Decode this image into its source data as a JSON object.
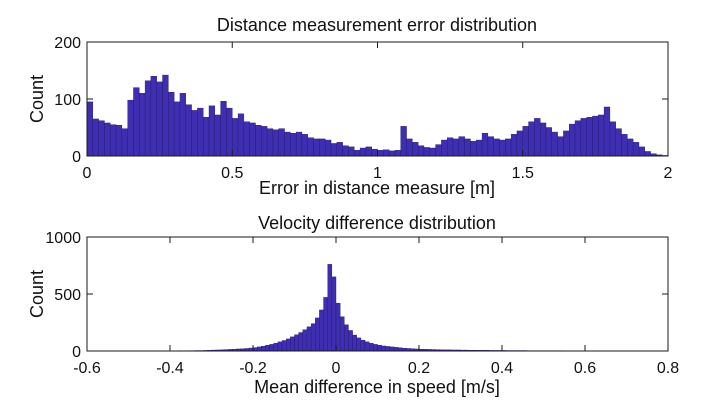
{
  "chart_data": [
    {
      "type": "bar",
      "title": "Distance measurement error distribution",
      "xlabel": "Error in distance measure [m]",
      "ylabel": "Count",
      "xlim": [
        0,
        2
      ],
      "ylim": [
        0,
        200
      ],
      "xticks": [
        "0",
        "0.5",
        "1",
        "1.5",
        "2"
      ],
      "yticks": [
        "0",
        "100",
        "200"
      ],
      "bin_start": 0,
      "bin_width": 0.02,
      "bar_color": "#3f2fb0",
      "values": [
        95,
        65,
        62,
        58,
        55,
        54,
        48,
        98,
        120,
        110,
        132,
        140,
        130,
        142,
        112,
        95,
        110,
        90,
        80,
        84,
        68,
        88,
        72,
        96,
        84,
        66,
        74,
        60,
        58,
        54,
        52,
        48,
        46,
        48,
        42,
        40,
        42,
        38,
        32,
        30,
        30,
        28,
        22,
        24,
        18,
        16,
        10,
        14,
        16,
        12,
        10,
        11,
        9,
        10,
        52,
        30,
        24,
        18,
        15,
        14,
        20,
        28,
        32,
        30,
        34,
        30,
        26,
        28,
        40,
        34,
        30,
        28,
        30,
        38,
        44,
        52,
        60,
        66,
        58,
        50,
        42,
        34,
        44,
        56,
        62,
        66,
        68,
        70,
        72,
        86,
        60,
        48,
        38,
        30,
        24,
        16,
        8,
        4,
        2,
        1
      ]
    },
    {
      "type": "bar",
      "title": "Velocity difference distribution",
      "xlabel": "Mean difference in speed [m/s]",
      "ylabel": "Count",
      "xlim": [
        -0.6,
        0.8
      ],
      "ylim": [
        0,
        1000
      ],
      "xticks": [
        "-0.6",
        "-0.4",
        "-0.2",
        "0",
        "0.2",
        "0.4",
        "0.6",
        "0.8"
      ],
      "yticks": [
        "0",
        "500",
        "1000"
      ],
      "bin_start": -0.4,
      "bin_width": 0.01,
      "bar_color": "#3f2fb0",
      "values": [
        2,
        2,
        3,
        2,
        3,
        3,
        4,
        4,
        5,
        6,
        8,
        9,
        10,
        12,
        14,
        16,
        18,
        20,
        22,
        26,
        30,
        36,
        42,
        50,
        58,
        68,
        80,
        92,
        106,
        124,
        142,
        162,
        186,
        212,
        240,
        290,
        360,
        470,
        760,
        650,
        420,
        300,
        230,
        180,
        140,
        115,
        95,
        80,
        68,
        58,
        50,
        44,
        40,
        36,
        32,
        28,
        24,
        22,
        20,
        18,
        16,
        15,
        14,
        13,
        12,
        11,
        10,
        10,
        9,
        9,
        8,
        8,
        7,
        7,
        6,
        6,
        6,
        5,
        5,
        5,
        5,
        4,
        4,
        4,
        4,
        4,
        3,
        3,
        3,
        3,
        3,
        3,
        3,
        3,
        3,
        2,
        2,
        2,
        2,
        2,
        2,
        2,
        2,
        2,
        2,
        2,
        2,
        2,
        2,
        2,
        2,
        2,
        2,
        2,
        2
      ]
    }
  ]
}
